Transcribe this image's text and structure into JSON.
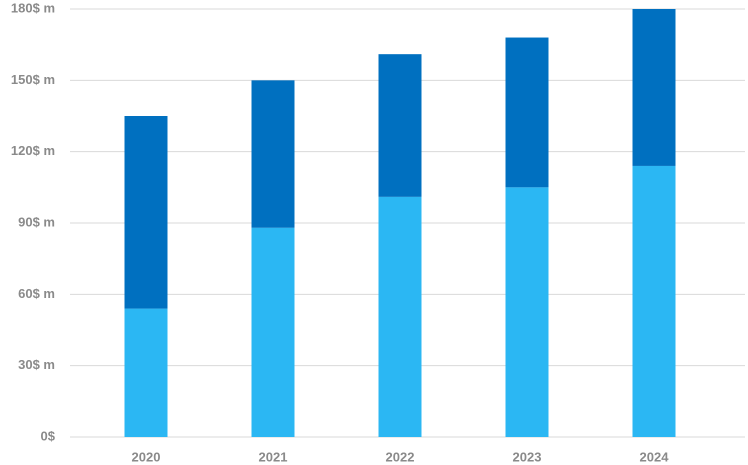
{
  "chart_data": {
    "type": "stacked-bar",
    "categories": [
      "2020",
      "2021",
      "2022",
      "2023",
      "2024"
    ],
    "series": [
      {
        "color": "#2bb7f3",
        "values": [
          54,
          88,
          101,
          105,
          114
        ]
      },
      {
        "color": "#0070c0",
        "values": [
          81,
          62,
          60,
          63,
          66
        ]
      }
    ],
    "ylim": [
      0,
      180
    ],
    "yticks": [
      {
        "value": 0,
        "label": "0$"
      },
      {
        "value": 30,
        "label": "30$ m"
      },
      {
        "value": 60,
        "label": "60$ m"
      },
      {
        "value": 90,
        "label": "90$ m"
      },
      {
        "value": 120,
        "label": "120$ m"
      },
      {
        "value": 150,
        "label": "150$ m"
      },
      {
        "value": 180,
        "label": "180$ m"
      }
    ],
    "grid": true
  }
}
